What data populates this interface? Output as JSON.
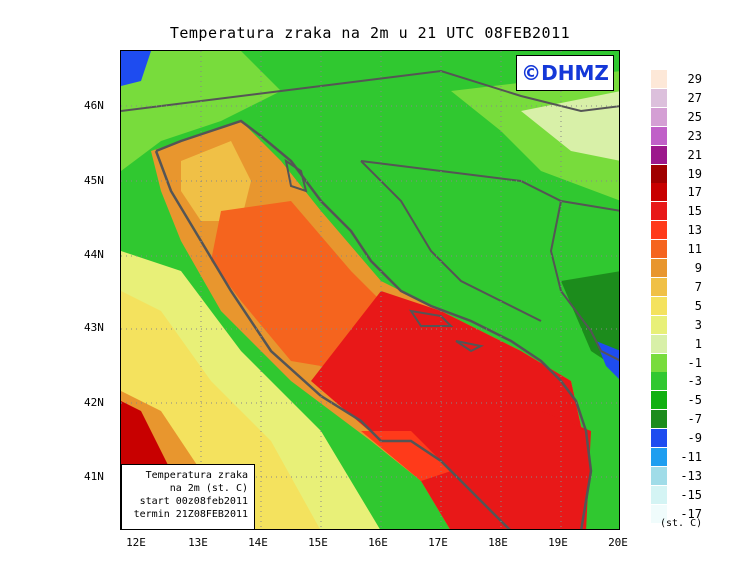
{
  "title": "Temperatura zraka na 2m u 21 UTC 08FEB2011",
  "logo": "©DHMZ",
  "info": {
    "line1": "Temperatura zraka",
    "line2": "na 2m (st. C)",
    "line3": "start 00z08feb2011",
    "line4": "termin 21Z08FEB2011"
  },
  "lat_labels": [
    "46N",
    "45N",
    "44N",
    "43N",
    "42N",
    "41N"
  ],
  "lon_labels": [
    "12E",
    "13E",
    "14E",
    "15E",
    "16E",
    "17E",
    "18E",
    "19E",
    "20E"
  ],
  "legend": {
    "unit": "(st. C)",
    "labels": [
      "29",
      "27",
      "25",
      "23",
      "21",
      "19",
      "17",
      "15",
      "13",
      "11",
      "9",
      "7",
      "5",
      "3",
      "1",
      "-1",
      "-3",
      "-5",
      "-7",
      "-9",
      "-11",
      "-13",
      "-15",
      "-17"
    ],
    "colors": [
      "#fde8d8",
      "#dcc0dc",
      "#d49fd4",
      "#c060c8",
      "#9c188c",
      "#a00000",
      "#c80000",
      "#e81818",
      "#ff3a1a",
      "#f5641e",
      "#e8962e",
      "#f0c046",
      "#f4e25e",
      "#e8f078",
      "#d8f0a8",
      "#78dc3c",
      "#30c830",
      "#10b010",
      "#1c8c1c",
      "#1e4cf0",
      "#1e9ef0",
      "#a0dce8",
      "#d4f4f4",
      "#f0fcfc"
    ]
  }
}
